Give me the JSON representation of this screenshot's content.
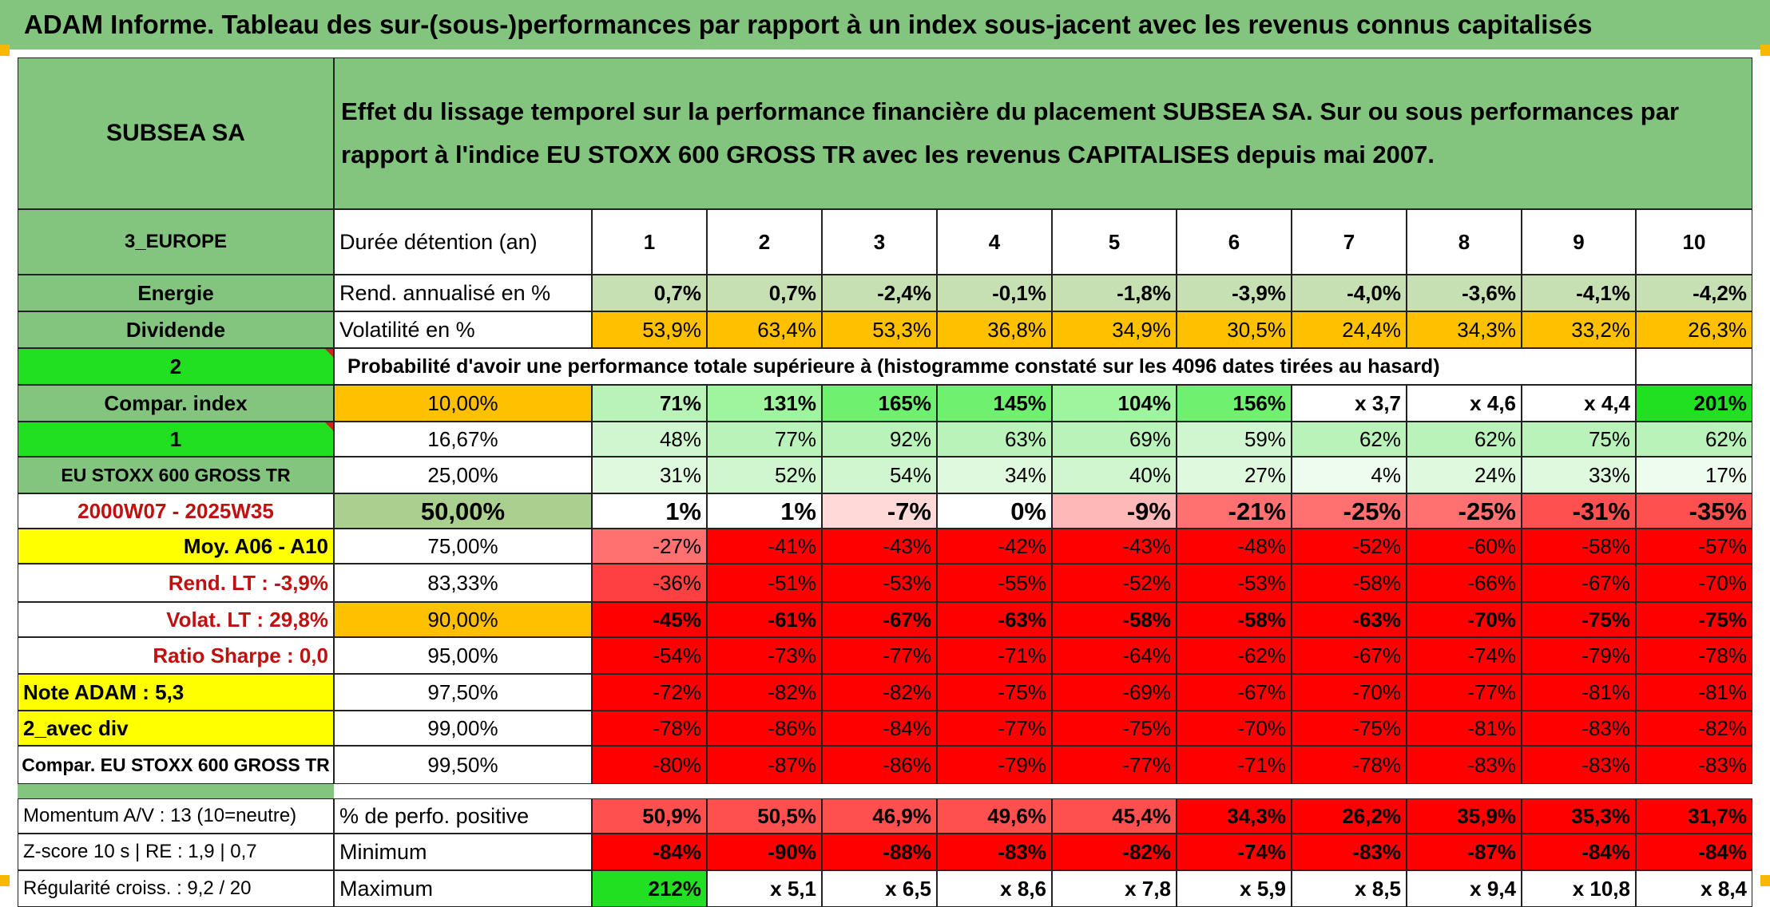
{
  "banner": "ADAM Informe. Tableau des sur-(sous-)performances par rapport à un index sous-jacent avec les revenus connus capitalisés",
  "header": {
    "company": "SUBSEA SA",
    "description": "Effet du lissage temporel sur la performance financière du placement SUBSEA SA. Sur ou sous performances par rapport à l'indice EU STOXX 600 GROSS TR avec les revenus CAPITALISES depuis mai 2007."
  },
  "left": {
    "region": "3_EUROPE",
    "sector": "Energie",
    "type": "Dividende",
    "n2": "2",
    "compar_label": "Compar. index",
    "n1": "1",
    "index_name": "EU STOXX 600 GROSS TR",
    "period": "2000W07 - 2025W35",
    "moy": "Moy. A06 - A10",
    "rend_lt": "Rend. LT :   -3,9%",
    "volat_lt": "Volat. LT :   29,8%",
    "sharpe": "Ratio Sharpe :    0,0",
    "note": "Note ADAM : 5,3",
    "avec_div": "2_avec div",
    "compar_full": "Compar. EU STOXX 600 GROSS TR",
    "momentum": "Momentum A/V : 13 (10=neutre)",
    "zscore": "Z-score 10 s | RE : 1,9 | 0,7",
    "regularite": "Régularité croiss. : 9,2 / 20"
  },
  "labels": {
    "duree": "Durée détention (an)",
    "rend": "Rend. annualisé en %",
    "volat": "Volatilité en %",
    "proba": "Probabilité d'avoir une performance totale supérieure à (histogramme constaté sur les 4096 dates tirées au hasard)",
    "pos": "% de perfo. positive",
    "min": "Minimum",
    "max": "Maximum"
  },
  "years": [
    "1",
    "2",
    "3",
    "4",
    "5",
    "6",
    "7",
    "8",
    "9",
    "10"
  ],
  "rend": [
    "0,7%",
    "0,7%",
    "-2,4%",
    "-0,1%",
    "-1,8%",
    "-3,9%",
    "-4,0%",
    "-3,6%",
    "-4,1%",
    "-4,2%"
  ],
  "volat": [
    "53,9%",
    "63,4%",
    "53,3%",
    "36,8%",
    "34,9%",
    "30,5%",
    "24,4%",
    "34,3%",
    "33,2%",
    "26,3%"
  ],
  "percentiles": [
    {
      "p": "10,00%",
      "v": [
        "71%",
        "131%",
        "165%",
        "145%",
        "104%",
        "156%",
        "x 3,7",
        "x 4,6",
        "x 4,4",
        "201%"
      ]
    },
    {
      "p": "16,67%",
      "v": [
        "48%",
        "77%",
        "92%",
        "63%",
        "69%",
        "59%",
        "62%",
        "62%",
        "75%",
        "62%"
      ]
    },
    {
      "p": "25,00%",
      "v": [
        "31%",
        "52%",
        "54%",
        "34%",
        "40%",
        "27%",
        "4%",
        "24%",
        "33%",
        "17%"
      ]
    },
    {
      "p": "50,00%",
      "v": [
        "1%",
        "1%",
        "-7%",
        "0%",
        "-9%",
        "-21%",
        "-25%",
        "-25%",
        "-31%",
        "-35%"
      ]
    },
    {
      "p": "75,00%",
      "v": [
        "-27%",
        "-41%",
        "-43%",
        "-42%",
        "-43%",
        "-48%",
        "-52%",
        "-60%",
        "-58%",
        "-57%"
      ]
    },
    {
      "p": "83,33%",
      "v": [
        "-36%",
        "-51%",
        "-53%",
        "-55%",
        "-52%",
        "-53%",
        "-58%",
        "-66%",
        "-67%",
        "-70%"
      ]
    },
    {
      "p": "90,00%",
      "v": [
        "-45%",
        "-61%",
        "-67%",
        "-63%",
        "-58%",
        "-58%",
        "-63%",
        "-70%",
        "-75%",
        "-75%"
      ]
    },
    {
      "p": "95,00%",
      "v": [
        "-54%",
        "-73%",
        "-77%",
        "-71%",
        "-64%",
        "-62%",
        "-67%",
        "-74%",
        "-79%",
        "-78%"
      ]
    },
    {
      "p": "97,50%",
      "v": [
        "-72%",
        "-82%",
        "-82%",
        "-75%",
        "-69%",
        "-67%",
        "-70%",
        "-77%",
        "-81%",
        "-81%"
      ]
    },
    {
      "p": "99,00%",
      "v": [
        "-78%",
        "-86%",
        "-84%",
        "-77%",
        "-75%",
        "-70%",
        "-75%",
        "-81%",
        "-83%",
        "-82%"
      ]
    },
    {
      "p": "99,50%",
      "v": [
        "-80%",
        "-87%",
        "-86%",
        "-79%",
        "-77%",
        "-71%",
        "-78%",
        "-83%",
        "-83%",
        "-83%"
      ]
    }
  ],
  "pos": [
    "50,9%",
    "50,5%",
    "46,9%",
    "49,6%",
    "45,4%",
    "34,3%",
    "26,2%",
    "35,9%",
    "35,3%",
    "31,7%"
  ],
  "min": [
    "-84%",
    "-90%",
    "-88%",
    "-83%",
    "-82%",
    "-74%",
    "-83%",
    "-87%",
    "-84%",
    "-84%"
  ],
  "max": [
    "212%",
    "x 5,1",
    "x 6,5",
    "x 8,6",
    "x 7,8",
    "x 5,9",
    "x 8,5",
    "x 9,4",
    "x 10,8",
    "x 8,4"
  ],
  "colors": {
    "banner": "#83c57e",
    "header_green": "#83c57e",
    "bright_green": "#21e021",
    "yellow": "#ffff00",
    "orange": "#ffc000",
    "label_red": "#c01010"
  }
}
